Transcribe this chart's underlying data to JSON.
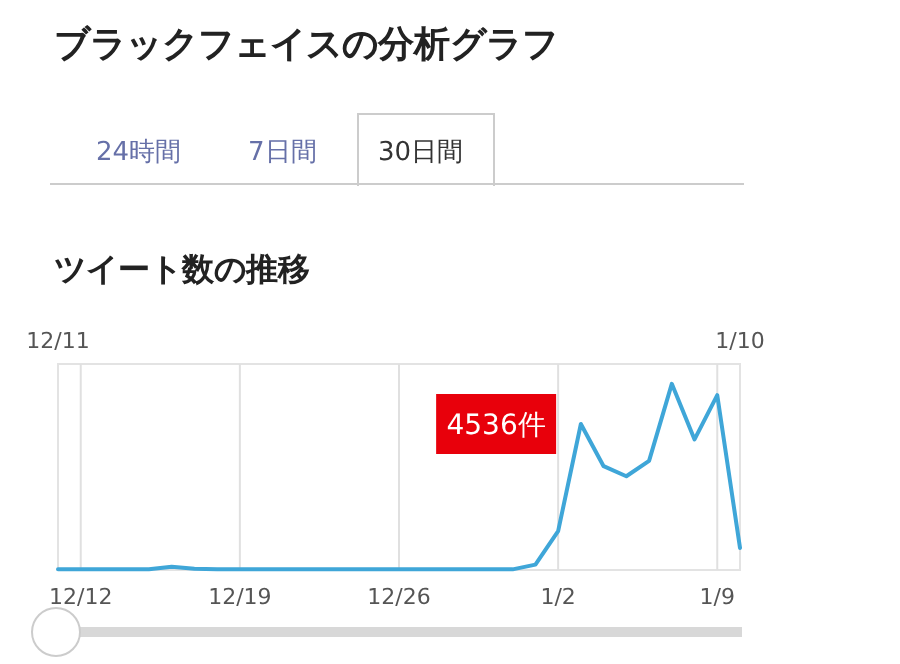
{
  "chart_data": {
    "type": "line",
    "title": "ブラックフェイスの分析グラフ",
    "subtitle": "ツイート数の推移",
    "annotations": [
      "24時間",
      "7日間",
      "30日間"
    ],
    "categories": [
      "12/11",
      "12/12",
      null,
      null,
      null,
      null,
      null,
      null,
      "12/19",
      null,
      null,
      null,
      null,
      null,
      null,
      "12/26",
      null,
      null,
      null,
      null,
      null,
      null,
      "1/2",
      null,
      null,
      null,
      null,
      null,
      null,
      "1/9",
      "1/10"
    ],
    "series": [
      {
        "color": "#3fa6d8",
        "values": [
          20,
          20,
          20,
          20,
          20,
          100,
          40,
          20,
          20,
          20,
          20,
          20,
          20,
          20,
          20,
          20,
          20,
          20,
          20,
          20,
          20,
          166,
          1207,
          4536,
          3225,
          2912,
          3391,
          5784,
          4057,
          5431,
          686
        ],
        "value_labels": [
          null,
          null,
          null,
          null,
          null,
          null,
          null,
          null,
          null,
          null,
          null,
          null,
          null,
          null,
          null,
          null,
          null,
          null,
          null,
          null,
          null,
          null,
          null,
          "4536件",
          null,
          null,
          null,
          null,
          null,
          null,
          null
        ]
      }
    ],
    "ylim": [
      0,
      6400
    ],
    "grid": "x",
    "tick_labels": "x",
    "marker": "none",
    "line_style": "solid"
  }
}
